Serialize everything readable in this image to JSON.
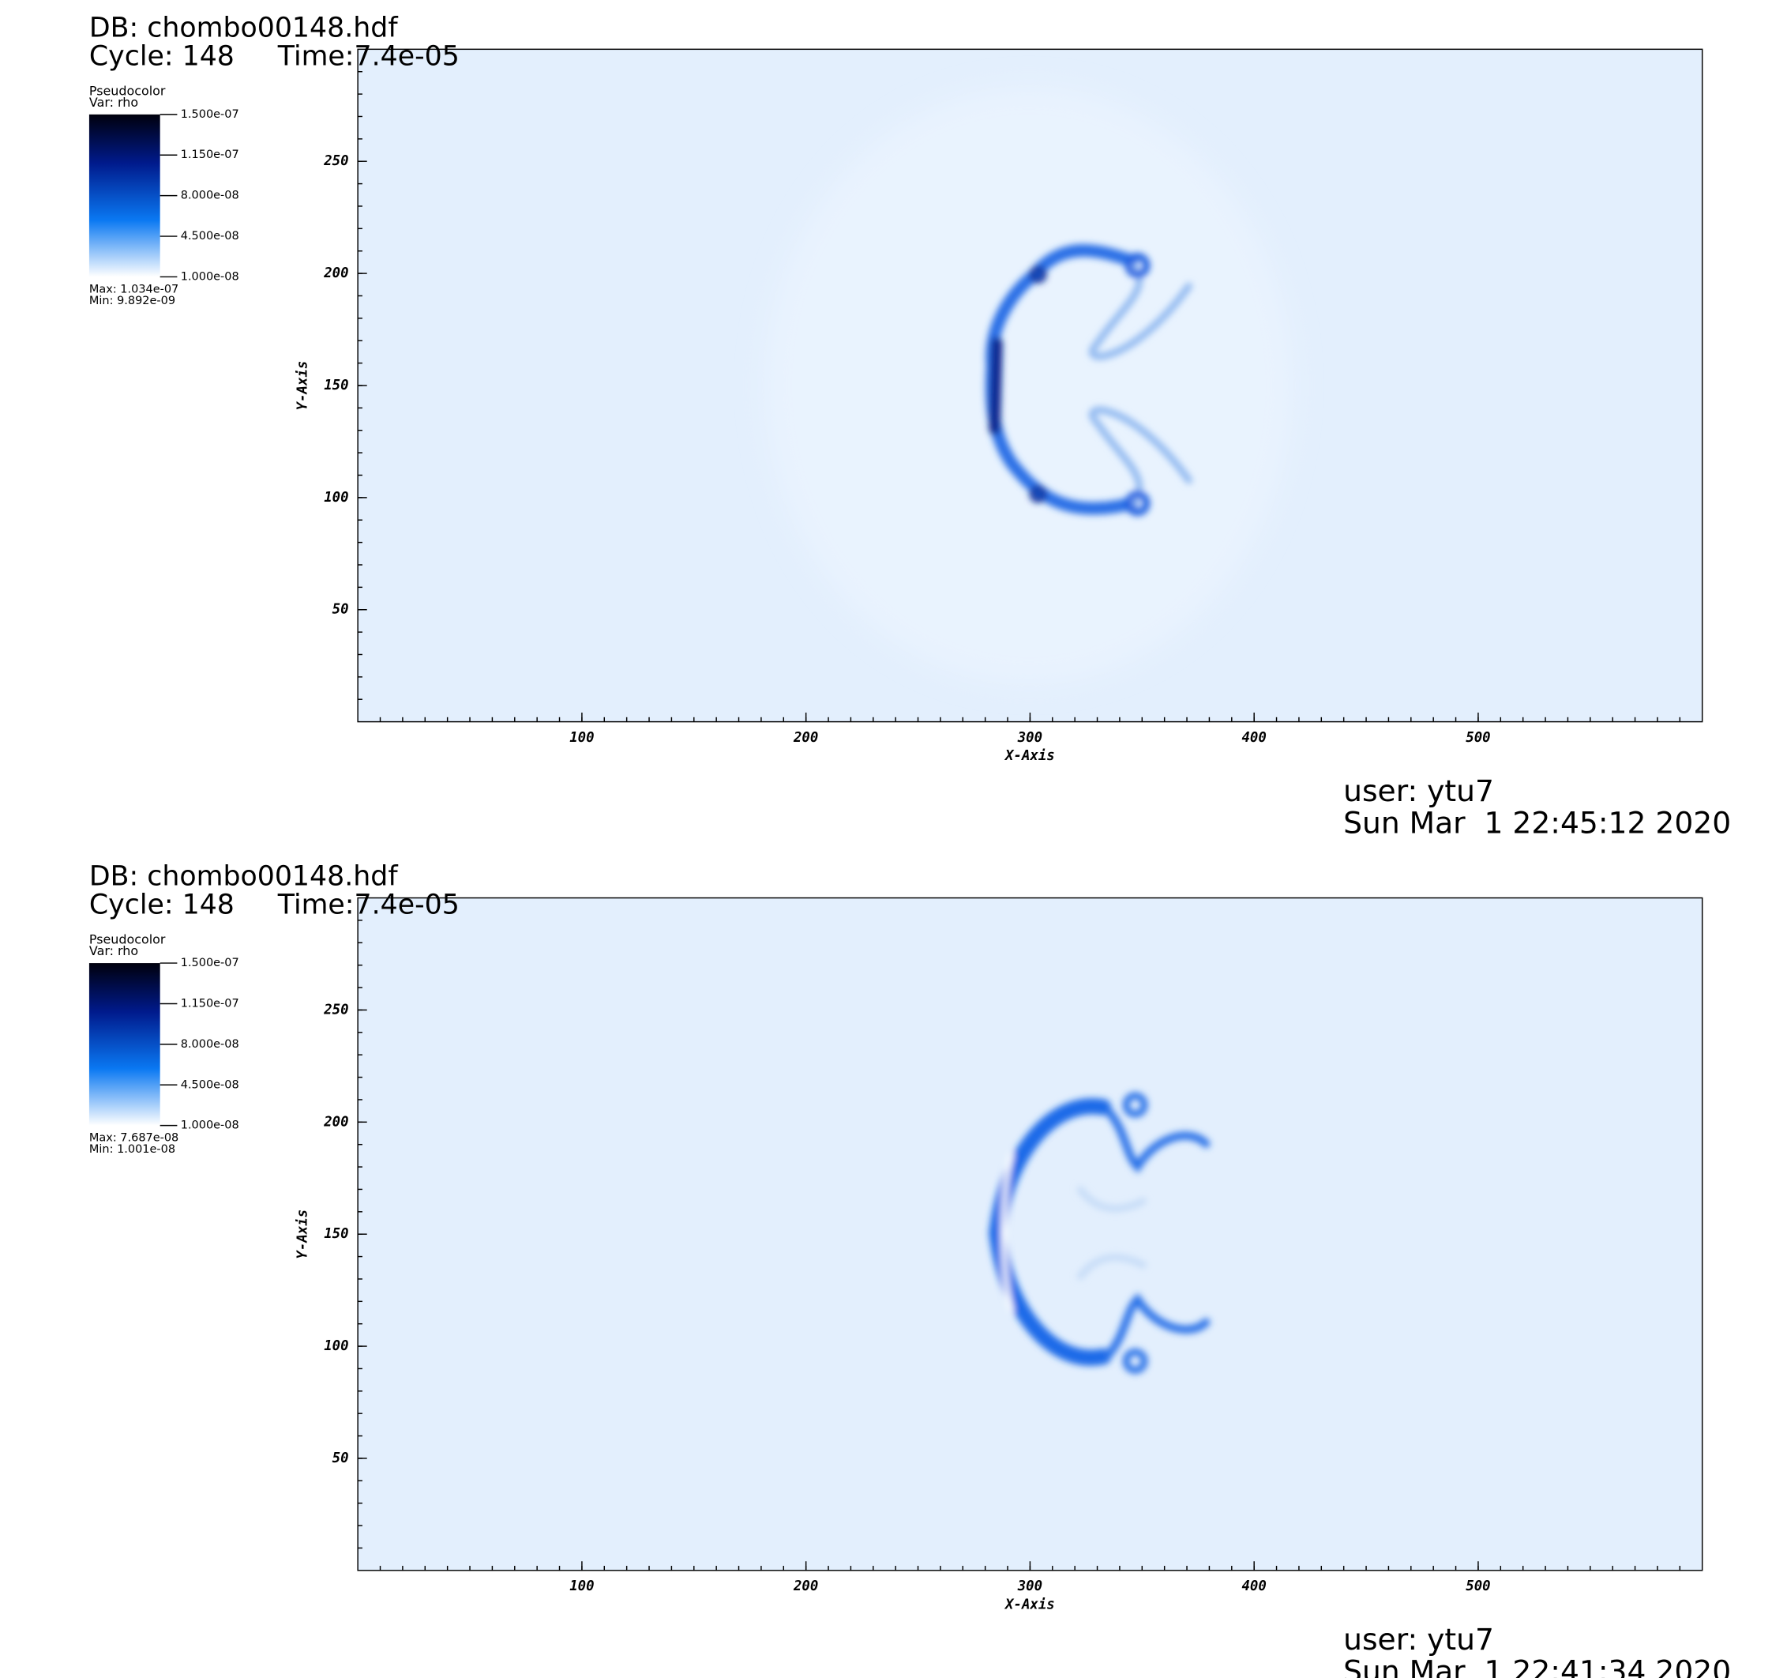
{
  "chart_data": [
    {
      "type": "pseudocolor",
      "db": "DB: chombo00148.hdf",
      "cycle": "Cycle: 148",
      "time": "Time:7.4e-05",
      "legend_title": "Pseudocolor",
      "var": "Var: rho",
      "clim": [
        1e-08,
        1.5e-07
      ],
      "cticks": [
        {
          "value": 1.5e-07,
          "label": "1.500e-07"
        },
        {
          "value": 1.15e-07,
          "label": "1.150e-07"
        },
        {
          "value": 8e-08,
          "label": "8.000e-08"
        },
        {
          "value": 4.5e-08,
          "label": "4.500e-08"
        },
        {
          "value": 1e-08,
          "label": "1.000e-08"
        }
      ],
      "max": "Max:  1.034e-07",
      "min": "Min:  9.892e-09",
      "xlabel": "X-Axis",
      "ylabel": "Y-Axis",
      "xlim": [
        0,
        600
      ],
      "ylim": [
        0,
        300
      ],
      "xticks": [
        100,
        200,
        300,
        400,
        500
      ],
      "yticks": [
        50,
        100,
        150,
        200,
        250
      ],
      "user": "user: ytu7",
      "date": "Sun Mar  1 22:45:12 2020"
    },
    {
      "type": "pseudocolor",
      "db": "DB: chombo00148.hdf",
      "cycle": "Cycle: 148",
      "time": "Time:7.4e-05",
      "legend_title": "Pseudocolor",
      "var": "Var: rho",
      "clim": [
        1e-08,
        1.5e-07
      ],
      "cticks": [
        {
          "value": 1.5e-07,
          "label": "1.500e-07"
        },
        {
          "value": 1.15e-07,
          "label": "1.150e-07"
        },
        {
          "value": 8e-08,
          "label": "8.000e-08"
        },
        {
          "value": 4.5e-08,
          "label": "4.500e-08"
        },
        {
          "value": 1e-08,
          "label": "1.000e-08"
        }
      ],
      "max": "Max:  7.687e-08",
      "min": "Min:  1.001e-08",
      "xlabel": "X-Axis",
      "ylabel": "Y-Axis",
      "xlim": [
        0,
        600
      ],
      "ylim": [
        0,
        300
      ],
      "xticks": [
        100,
        200,
        300,
        400,
        500
      ],
      "yticks": [
        50,
        100,
        150,
        200,
        250
      ],
      "user": "user: ytu7",
      "date": "Sun Mar  1 22:41:34 2020"
    }
  ]
}
